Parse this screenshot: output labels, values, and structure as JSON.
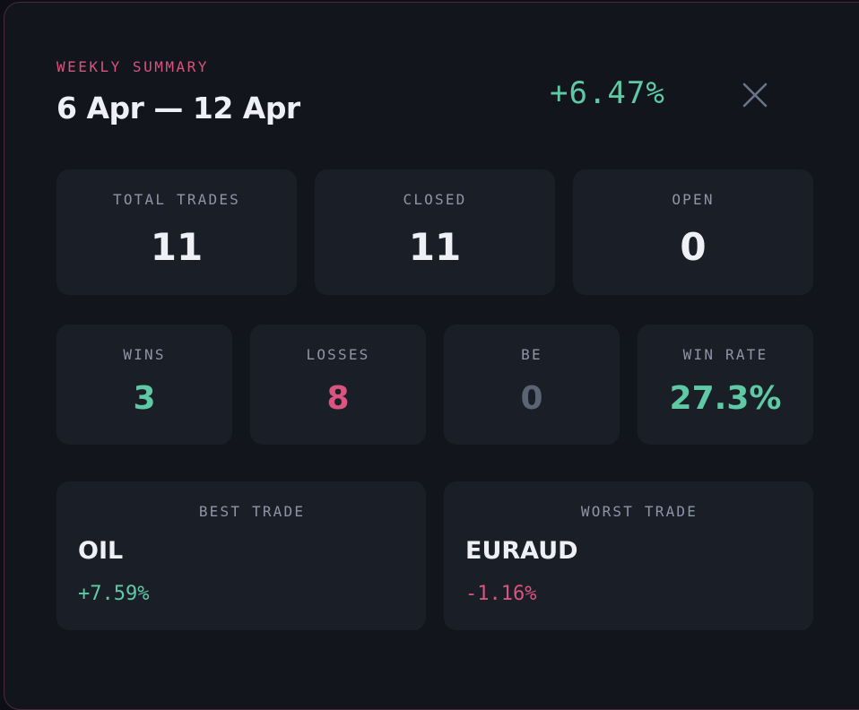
{
  "header": {
    "eyebrow": "WEEKLY SUMMARY",
    "date_range": "6 Apr — 12 Apr",
    "weekly_change": "+6.47%",
    "close_icon": "close-icon"
  },
  "stats": {
    "total_trades": {
      "label": "TOTAL TRADES",
      "value": "11"
    },
    "closed": {
      "label": "CLOSED",
      "value": "11"
    },
    "open": {
      "label": "OPEN",
      "value": "0"
    },
    "wins": {
      "label": "WINS",
      "value": "3"
    },
    "losses": {
      "label": "LOSSES",
      "value": "8"
    },
    "be": {
      "label": "BE",
      "value": "0"
    },
    "win_rate": {
      "label": "WIN RATE",
      "value": "27.3%"
    }
  },
  "trades": {
    "best": {
      "label": "BEST TRADE",
      "symbol": "OIL",
      "change": "+7.59%"
    },
    "worst": {
      "label": "WORST TRADE",
      "symbol": "EURAUD",
      "change": "-1.16%"
    }
  },
  "colors": {
    "accent_pink": "#d9547e",
    "positive_green": "#5fc9a6",
    "neutral_gray": "#5a6475",
    "panel_bg": "#12151c",
    "card_bg": "#1a1e26"
  }
}
